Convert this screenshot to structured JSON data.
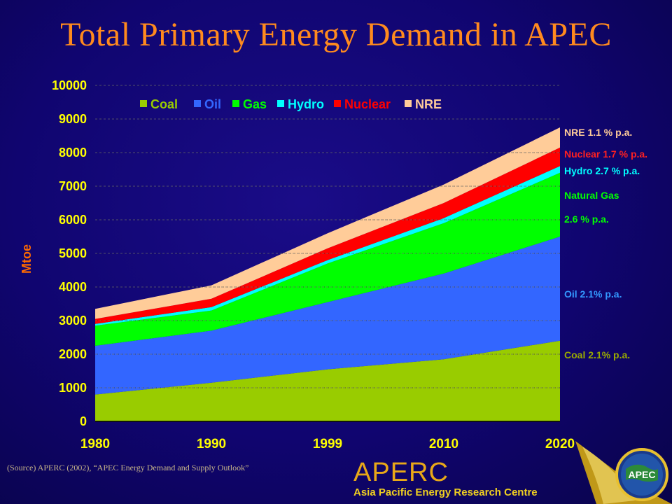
{
  "title": "Total Primary Energy Demand in APEC",
  "source": "(Source) APERC (2002), “APEC Energy Demand and Supply Outlook”",
  "logo": {
    "name": "APERC",
    "full_name": "Asia Pacific Energy Research Centre",
    "badge": "APEC"
  },
  "chart_data": {
    "type": "area",
    "stacked": true,
    "categories": [
      "1980",
      "1990",
      "1999",
      "2010",
      "2020"
    ],
    "ylabel": "Mtoe",
    "xlabel": "",
    "ylim": [
      0,
      10000
    ],
    "yticks": [
      0,
      1000,
      2000,
      3000,
      4000,
      5000,
      6000,
      7000,
      8000,
      9000,
      10000
    ],
    "grid": true,
    "legend": "top",
    "series": [
      {
        "name": "Coal",
        "color": "#99cc00",
        "values": [
          800,
          1150,
          1550,
          1850,
          2400
        ]
      },
      {
        "name": "Oil",
        "color": "#3366ff",
        "values": [
          1450,
          1550,
          2000,
          2550,
          3100
        ]
      },
      {
        "name": "Gas",
        "color": "#00ff00",
        "values": [
          600,
          600,
          1150,
          1500,
          1900
        ]
      },
      {
        "name": "Hydro",
        "color": "#00ffff",
        "values": [
          50,
          100,
          100,
          150,
          200
        ]
      },
      {
        "name": "Nuclear",
        "color": "#ff0000",
        "values": [
          150,
          250,
          350,
          450,
          550
        ]
      },
      {
        "name": "NRE",
        "color": "#ffcc99",
        "values": [
          300,
          400,
          450,
          550,
          600
        ]
      }
    ],
    "annotations": [
      {
        "label": "NRE",
        "rate": "1.1 % p.a.",
        "color": "#ffcc99"
      },
      {
        "label": "Nuclear",
        "rate": "1.7 % p.a.",
        "color": "#ff2020"
      },
      {
        "label": "Hydro",
        "rate": "2.7 % p.a.",
        "color": "#00ffff"
      },
      {
        "label": "Natural Gas",
        "rate": "2.6 % p.a.",
        "color": "#00ff00"
      },
      {
        "label": "Oil",
        "rate": "2.1% p.a.",
        "color": "#3399ff"
      },
      {
        "label": "Coal",
        "rate": "2.1% p.a.",
        "color": "#99aa00"
      }
    ]
  }
}
